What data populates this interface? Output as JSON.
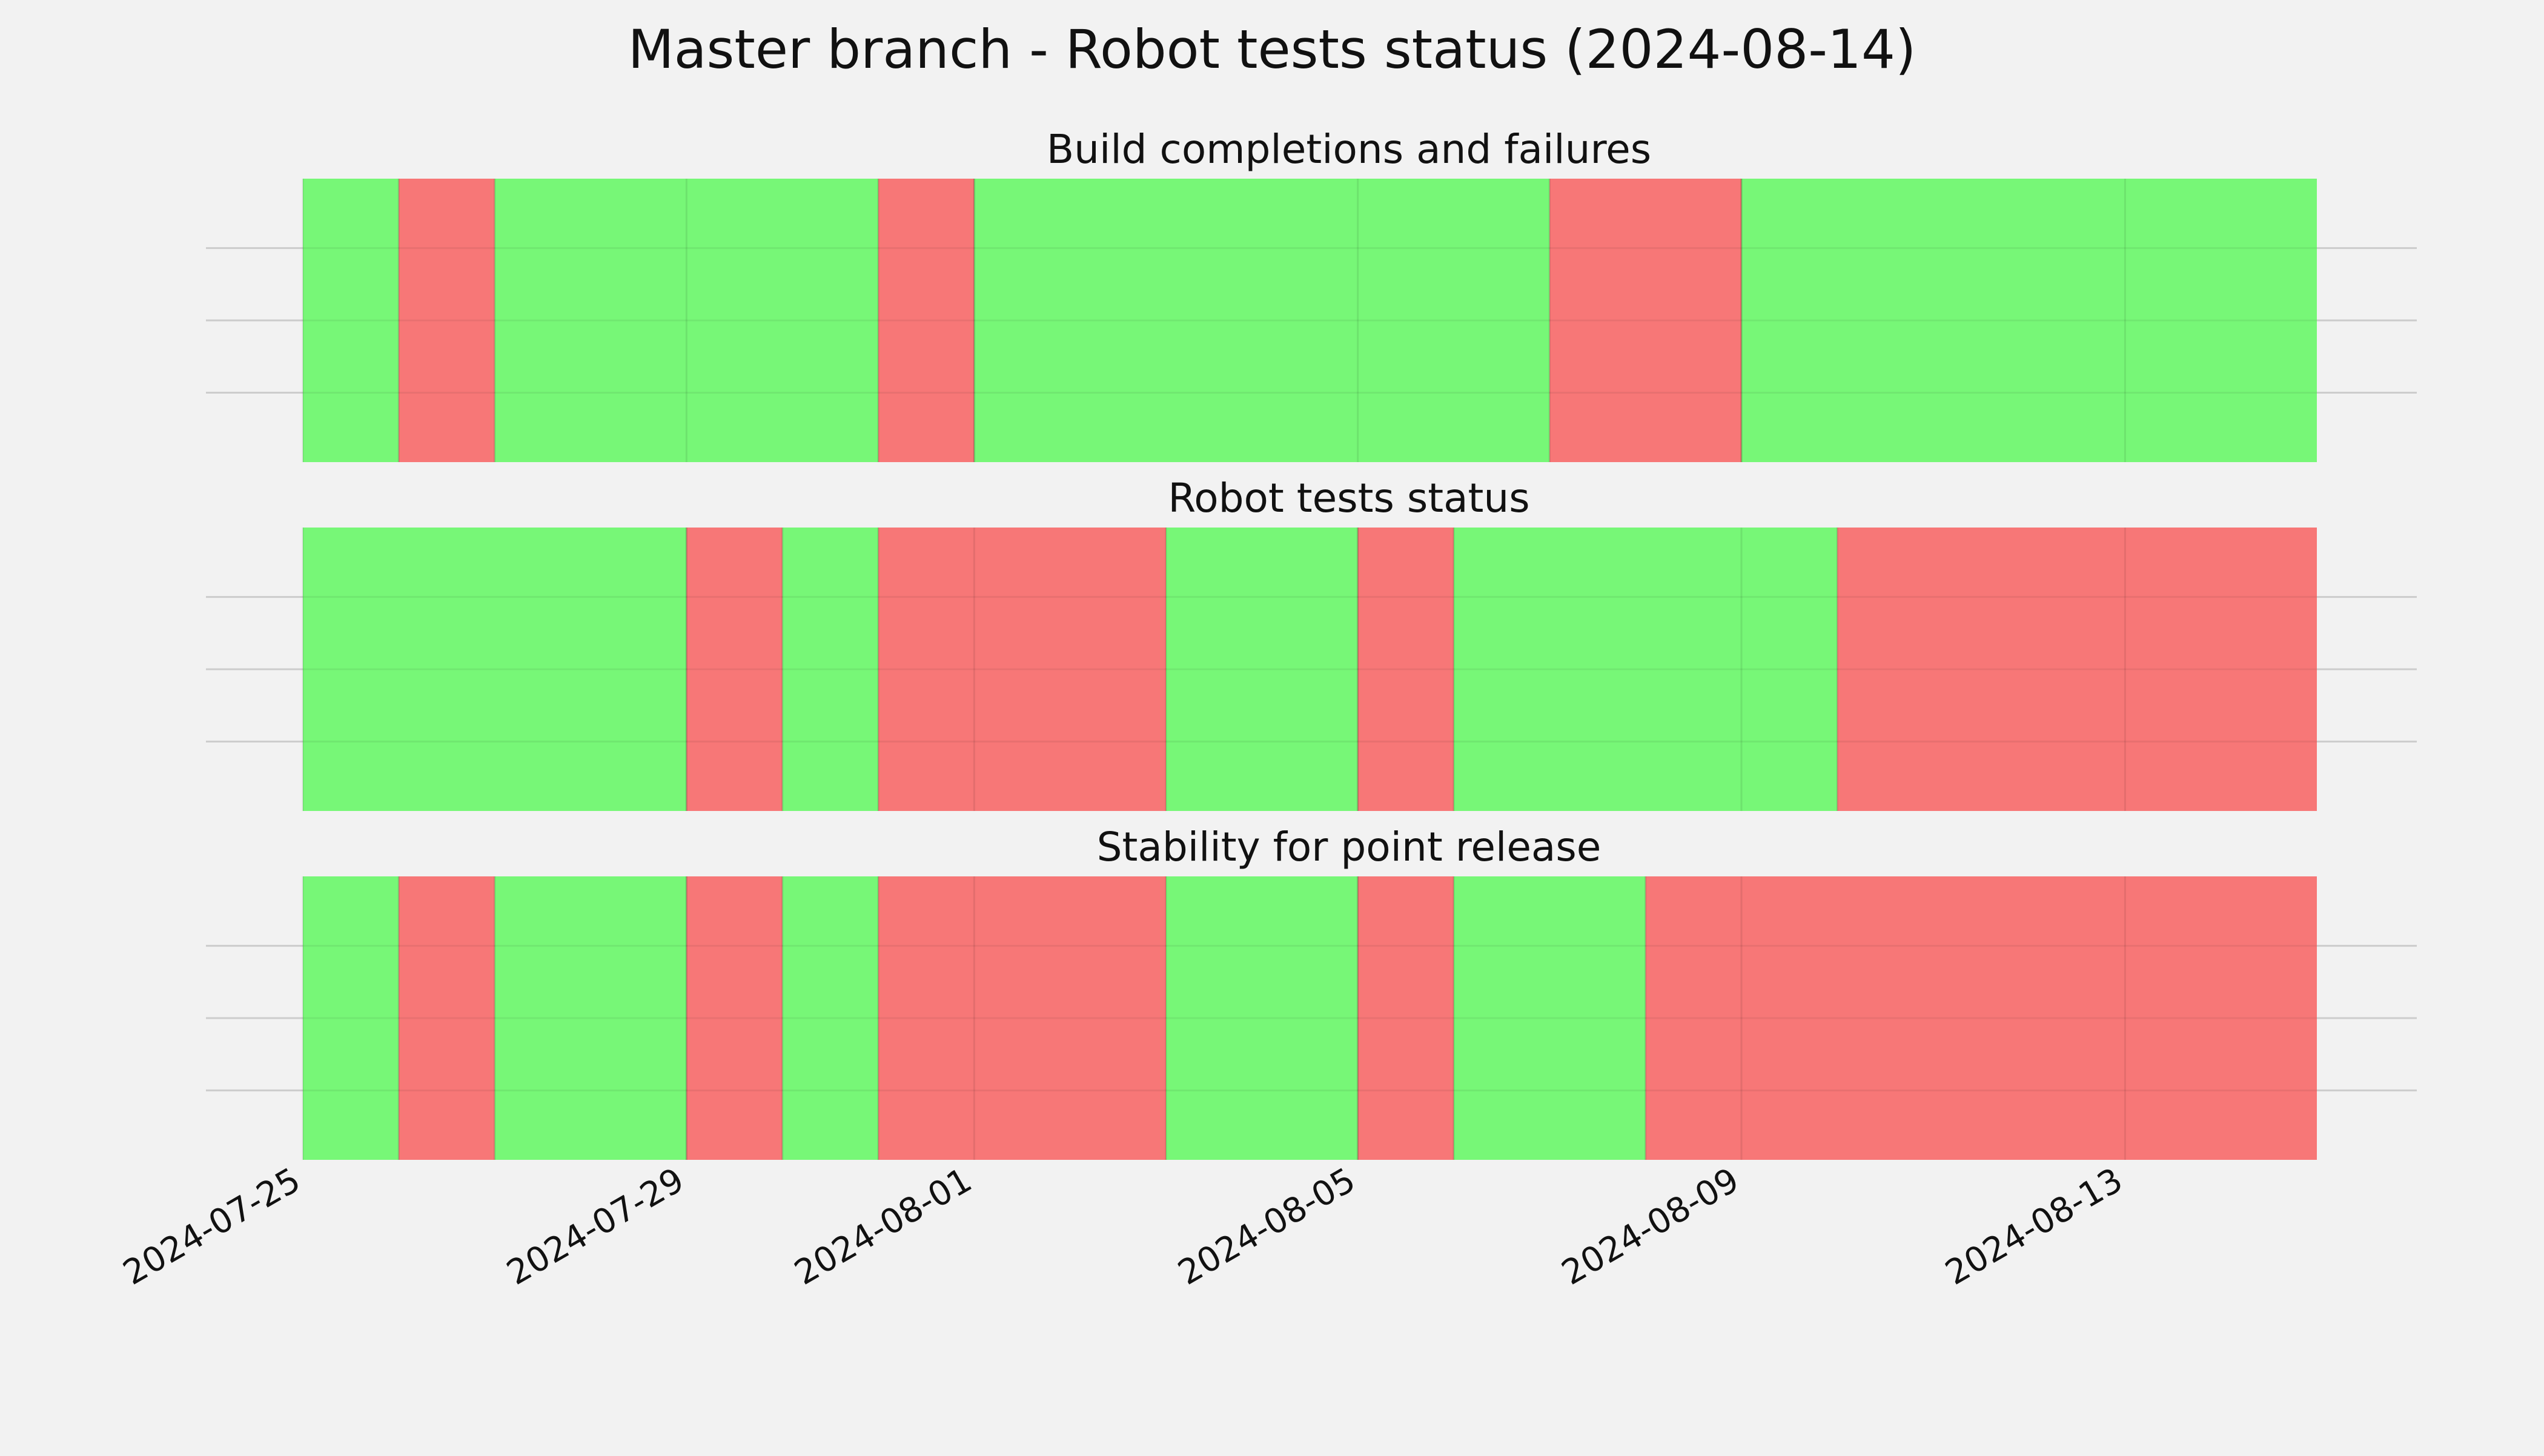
{
  "chart_data": {
    "type": "timeline",
    "title": "Master branch - Robot tests status (2024-08-14)",
    "x_ticks": [
      "2024-07-25",
      "2024-07-29",
      "2024-08-01",
      "2024-08-05",
      "2024-08-09",
      "2024-08-13"
    ],
    "xlim": [
      "2024-07-25",
      "2024-08-15"
    ],
    "grid": true,
    "colors": {
      "pass": "#77f777",
      "fail": "#f77777",
      "background": "#f2f2f2",
      "grid": "#cccccc"
    },
    "panels": [
      {
        "title": "Build completions and failures",
        "segments": [
          {
            "start": "2024-07-25",
            "end": "2024-07-26",
            "status": "pass"
          },
          {
            "start": "2024-07-26",
            "end": "2024-07-27",
            "status": "fail"
          },
          {
            "start": "2024-07-27",
            "end": "2024-07-31",
            "status": "pass"
          },
          {
            "start": "2024-07-31",
            "end": "2024-08-01",
            "status": "fail"
          },
          {
            "start": "2024-08-01",
            "end": "2024-08-07",
            "status": "pass"
          },
          {
            "start": "2024-08-07",
            "end": "2024-08-09",
            "status": "fail"
          },
          {
            "start": "2024-08-09",
            "end": "2024-08-15",
            "status": "pass"
          }
        ]
      },
      {
        "title": "Robot tests status",
        "segments": [
          {
            "start": "2024-07-25",
            "end": "2024-07-29",
            "status": "pass"
          },
          {
            "start": "2024-07-29",
            "end": "2024-07-30",
            "status": "fail"
          },
          {
            "start": "2024-07-30",
            "end": "2024-07-31",
            "status": "pass"
          },
          {
            "start": "2024-07-31",
            "end": "2024-08-03",
            "status": "fail"
          },
          {
            "start": "2024-08-03",
            "end": "2024-08-05",
            "status": "pass"
          },
          {
            "start": "2024-08-05",
            "end": "2024-08-06",
            "status": "fail"
          },
          {
            "start": "2024-08-06",
            "end": "2024-08-10",
            "status": "pass"
          },
          {
            "start": "2024-08-10",
            "end": "2024-08-15",
            "status": "fail"
          }
        ]
      },
      {
        "title": "Stability for point release",
        "segments": [
          {
            "start": "2024-07-25",
            "end": "2024-07-26",
            "status": "pass"
          },
          {
            "start": "2024-07-26",
            "end": "2024-07-27",
            "status": "fail"
          },
          {
            "start": "2024-07-27",
            "end": "2024-07-29",
            "status": "pass"
          },
          {
            "start": "2024-07-29",
            "end": "2024-07-30",
            "status": "fail"
          },
          {
            "start": "2024-07-30",
            "end": "2024-07-31",
            "status": "pass"
          },
          {
            "start": "2024-07-31",
            "end": "2024-08-03",
            "status": "fail"
          },
          {
            "start": "2024-08-03",
            "end": "2024-08-05",
            "status": "pass"
          },
          {
            "start": "2024-08-05",
            "end": "2024-08-06",
            "status": "fail"
          },
          {
            "start": "2024-08-06",
            "end": "2024-08-08",
            "status": "pass"
          },
          {
            "start": "2024-08-08",
            "end": "2024-08-15",
            "status": "fail"
          }
        ]
      }
    ]
  }
}
